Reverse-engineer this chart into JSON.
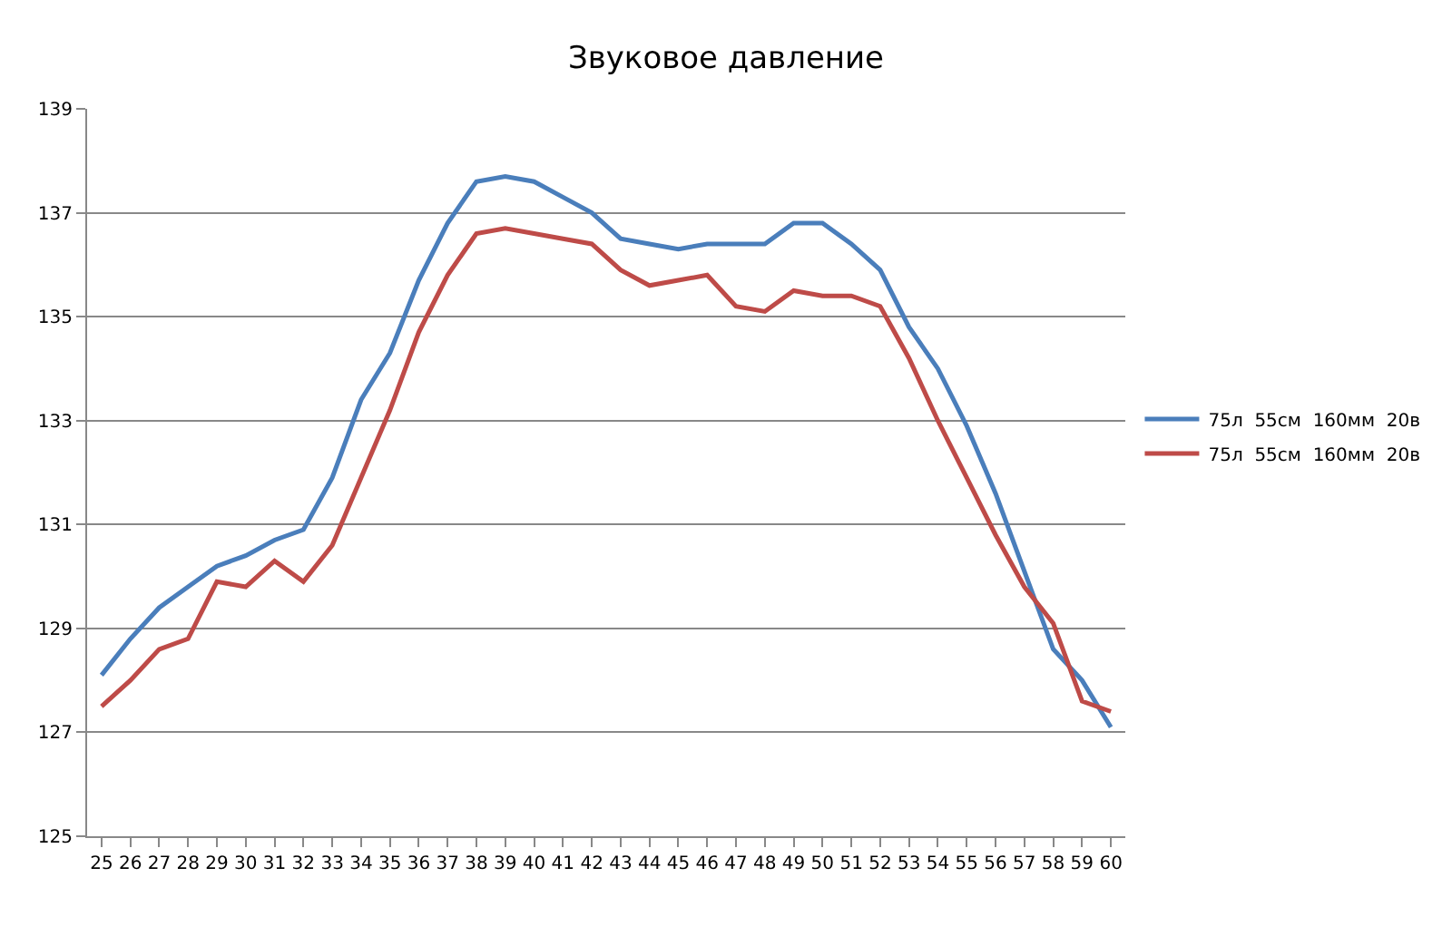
{
  "chart_data": {
    "type": "line",
    "title": "Звуковое давление",
    "categories": [
      "25",
      "26",
      "27",
      "28",
      "29",
      "30",
      "31",
      "32",
      "33",
      "34",
      "35",
      "36",
      "37",
      "38",
      "39",
      "40",
      "41",
      "42",
      "43",
      "44",
      "45",
      "46",
      "47",
      "48",
      "49",
      "50",
      "51",
      "52",
      "53",
      "54",
      "55",
      "56",
      "57",
      "58",
      "59",
      "60"
    ],
    "series": [
      {
        "name": "75л  55см  160мм  20в",
        "color": "#4a7ebb",
        "values": [
          128.1,
          128.8,
          129.4,
          129.8,
          130.2,
          130.4,
          130.7,
          130.9,
          131.9,
          133.4,
          134.3,
          135.7,
          136.8,
          137.6,
          137.7,
          137.6,
          137.3,
          137.0,
          136.5,
          136.4,
          136.3,
          136.4,
          136.4,
          136.4,
          136.8,
          136.8,
          136.4,
          135.9,
          134.8,
          134.0,
          132.9,
          131.6,
          130.1,
          128.6,
          128.0,
          127.1
        ]
      },
      {
        "name": "75л  55см  160мм  20в",
        "color": "#be4b48",
        "values": [
          127.5,
          128.0,
          128.6,
          128.8,
          129.9,
          129.8,
          130.3,
          129.9,
          130.6,
          131.9,
          133.2,
          134.7,
          135.8,
          136.6,
          136.7,
          136.6,
          136.5,
          136.4,
          135.9,
          135.6,
          135.7,
          135.8,
          135.2,
          135.1,
          135.5,
          135.4,
          135.4,
          135.2,
          134.2,
          133.0,
          131.9,
          130.8,
          129.8,
          129.1,
          127.6,
          127.4
        ]
      }
    ],
    "ylim": [
      125,
      139
    ],
    "yticks": [
      125,
      127,
      129,
      131,
      133,
      135,
      137,
      139
    ],
    "grid": "y",
    "legend": "right",
    "marker": "none",
    "line_style": "solid"
  }
}
